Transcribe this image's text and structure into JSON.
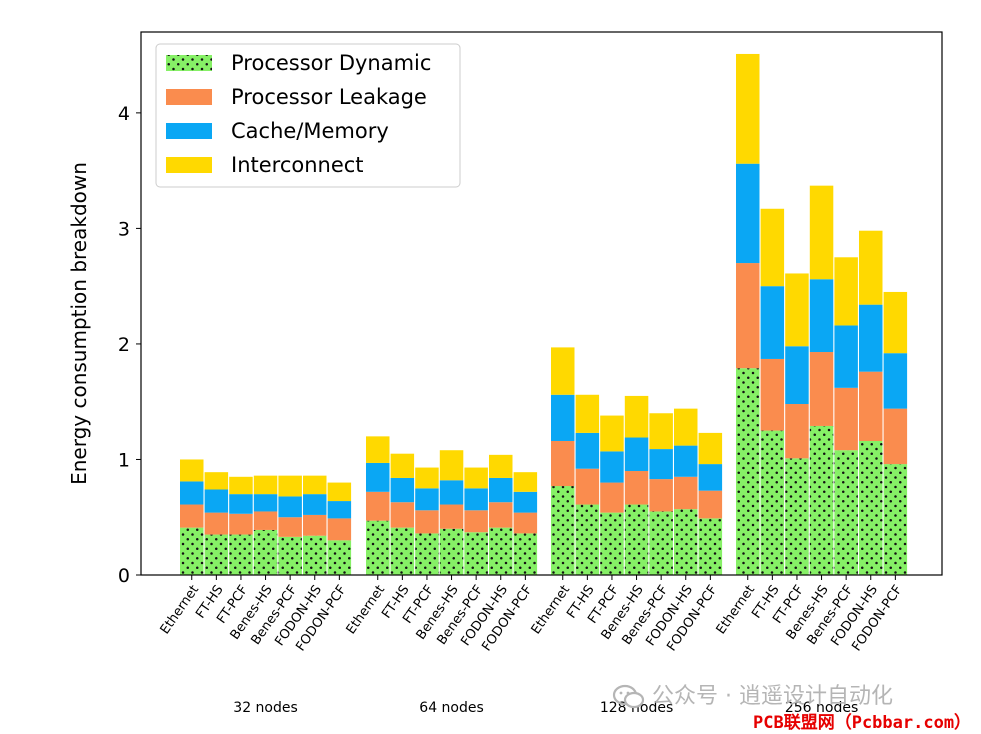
{
  "chart_data": {
    "type": "bar",
    "stacked": true,
    "ylabel": "Energy consumption breakdown",
    "ylim": [
      0,
      4.7
    ],
    "yticks": [
      0,
      1,
      2,
      3,
      4
    ],
    "legend_position": "top-left",
    "series": [
      {
        "name": "Processor Dynamic",
        "color": "#86f066",
        "pattern": "dots"
      },
      {
        "name": "Processor Leakage",
        "color": "#fa8c4e"
      },
      {
        "name": "Cache/Memory",
        "color": "#0aa7f4"
      },
      {
        "name": "Interconnect",
        "color": "#ffd900"
      }
    ],
    "groups": [
      {
        "label": "32 nodes",
        "bars": [
          {
            "name": "Ethernet",
            "values": [
              0.41,
              0.2,
              0.2,
              0.19
            ]
          },
          {
            "name": "FT-HS",
            "values": [
              0.35,
              0.19,
              0.2,
              0.15
            ]
          },
          {
            "name": "FT-PCF",
            "values": [
              0.35,
              0.18,
              0.17,
              0.15
            ]
          },
          {
            "name": "Benes-HS",
            "values": [
              0.39,
              0.16,
              0.15,
              0.16
            ]
          },
          {
            "name": "Benes-PCF",
            "values": [
              0.33,
              0.17,
              0.18,
              0.18
            ]
          },
          {
            "name": "FODON-HS",
            "values": [
              0.34,
              0.18,
              0.18,
              0.16
            ]
          },
          {
            "name": "FODON-PCF",
            "values": [
              0.3,
              0.19,
              0.15,
              0.16
            ]
          }
        ]
      },
      {
        "label": "64 nodes",
        "bars": [
          {
            "name": "Ethernet",
            "values": [
              0.47,
              0.25,
              0.25,
              0.23
            ]
          },
          {
            "name": "FT-HS",
            "values": [
              0.41,
              0.22,
              0.21,
              0.21
            ]
          },
          {
            "name": "FT-PCF",
            "values": [
              0.36,
              0.2,
              0.19,
              0.18
            ]
          },
          {
            "name": "Benes-HS",
            "values": [
              0.4,
              0.21,
              0.21,
              0.26
            ]
          },
          {
            "name": "Benes-PCF",
            "values": [
              0.37,
              0.19,
              0.19,
              0.18
            ]
          },
          {
            "name": "FODON-HS",
            "values": [
              0.41,
              0.22,
              0.21,
              0.2
            ]
          },
          {
            "name": "FODON-PCF",
            "values": [
              0.36,
              0.18,
              0.18,
              0.17
            ]
          }
        ]
      },
      {
        "label": "128 nodes",
        "bars": [
          {
            "name": "Ethernet",
            "values": [
              0.77,
              0.39,
              0.4,
              0.41
            ]
          },
          {
            "name": "FT-HS",
            "values": [
              0.61,
              0.31,
              0.31,
              0.33
            ]
          },
          {
            "name": "FT-PCF",
            "values": [
              0.54,
              0.26,
              0.27,
              0.31
            ]
          },
          {
            "name": "Benes-HS",
            "values": [
              0.61,
              0.29,
              0.29,
              0.36
            ]
          },
          {
            "name": "Benes-PCF",
            "values": [
              0.55,
              0.28,
              0.26,
              0.31
            ]
          },
          {
            "name": "FODON-HS",
            "values": [
              0.57,
              0.28,
              0.27,
              0.32
            ]
          },
          {
            "name": "FODON-PCF",
            "values": [
              0.49,
              0.24,
              0.23,
              0.27
            ]
          }
        ]
      },
      {
        "label": "256 nodes",
        "bars": [
          {
            "name": "Ethernet",
            "values": [
              1.79,
              0.91,
              0.86,
              0.95
            ]
          },
          {
            "name": "FT-HS",
            "values": [
              1.25,
              0.62,
              0.63,
              0.67
            ]
          },
          {
            "name": "FT-PCF",
            "values": [
              1.01,
              0.47,
              0.5,
              0.63
            ]
          },
          {
            "name": "Benes-HS",
            "values": [
              1.29,
              0.64,
              0.63,
              0.81
            ]
          },
          {
            "name": "Benes-PCF",
            "values": [
              1.08,
              0.54,
              0.54,
              0.59
            ]
          },
          {
            "name": "FODON-HS",
            "values": [
              1.16,
              0.6,
              0.58,
              0.64
            ]
          },
          {
            "name": "FODON-PCF",
            "values": [
              0.96,
              0.48,
              0.48,
              0.53
            ]
          }
        ]
      }
    ]
  },
  "watermark": {
    "text": "公众号 · 逍遥设计自动化",
    "icon": "wechat-icon"
  },
  "credit": {
    "text": "PCB联盟网（Pcbbar.com）"
  }
}
